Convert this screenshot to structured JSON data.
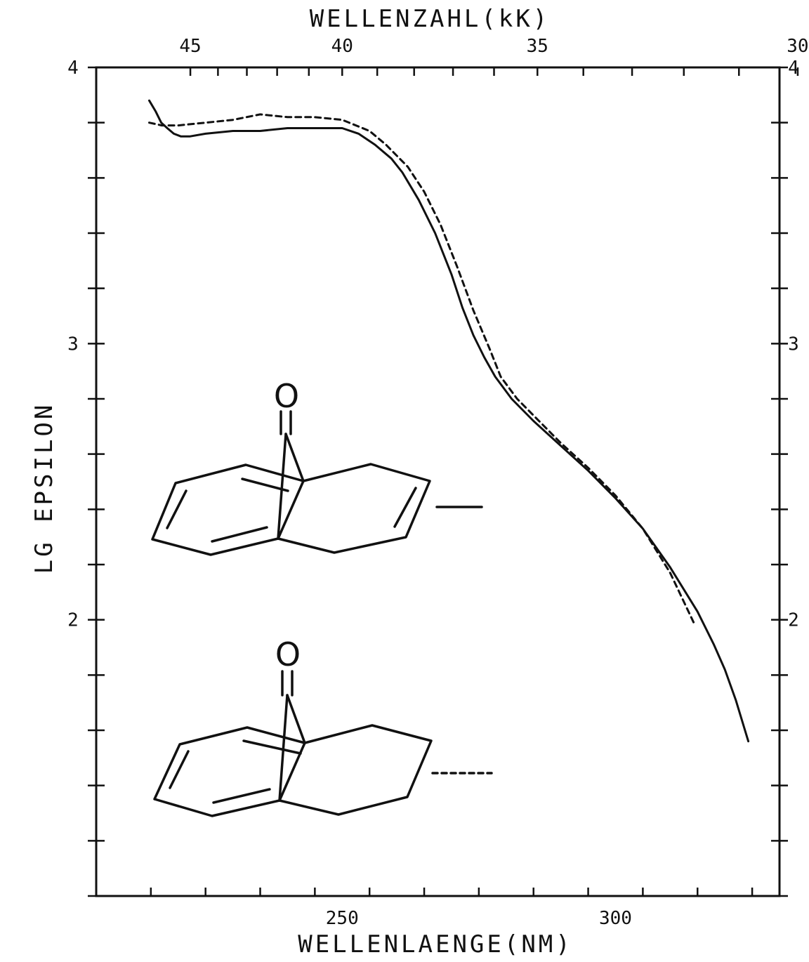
{
  "chart_data": {
    "type": "line",
    "xlabel": "WELLENLAENGE(NM)",
    "x2label": "WELLENZAHL(kK)",
    "ylabel": "LG EPSILON",
    "xlim": [
      205,
      330
    ],
    "ylim": [
      1.0,
      4.0
    ],
    "x_ticks": [
      250,
      300
    ],
    "x_tick_labels": [
      "250",
      "300"
    ],
    "x2_ticks": [
      45,
      40,
      35,
      30
    ],
    "x2_tick_labels": [
      "45",
      "40",
      "35",
      "30"
    ],
    "y_ticks": [
      2,
      3,
      4
    ],
    "y_tick_labels": [
      "2",
      "3",
      "4"
    ],
    "grid": false,
    "series": [
      {
        "style": "solid",
        "x": [
          214.7,
          215.9,
          216.9,
          218,
          219.2,
          220.5,
          222.1,
          225,
          230,
          235,
          240,
          245,
          250,
          253,
          256,
          259,
          261,
          264,
          267,
          270,
          272,
          274,
          276,
          278,
          281,
          285,
          290,
          295,
          300,
          305,
          310,
          315,
          318,
          320,
          322,
          324.3
        ],
        "y": [
          3.88,
          3.84,
          3.8,
          3.78,
          3.76,
          3.75,
          3.75,
          3.76,
          3.77,
          3.77,
          3.78,
          3.78,
          3.78,
          3.76,
          3.72,
          3.67,
          3.62,
          3.52,
          3.4,
          3.25,
          3.13,
          3.03,
          2.95,
          2.88,
          2.8,
          2.72,
          2.63,
          2.54,
          2.44,
          2.33,
          2.19,
          2.03,
          1.91,
          1.82,
          1.71,
          1.56
        ]
      },
      {
        "style": "dashed",
        "x": [
          214.7,
          217,
          220,
          225,
          230,
          235,
          240,
          245,
          250,
          255,
          258,
          262,
          265,
          268,
          271,
          274,
          277,
          279,
          282,
          286,
          290,
          295,
          300,
          305,
          310,
          314.3
        ],
        "y": [
          3.8,
          3.79,
          3.79,
          3.8,
          3.81,
          3.83,
          3.82,
          3.82,
          3.81,
          3.77,
          3.72,
          3.64,
          3.55,
          3.43,
          3.28,
          3.12,
          2.98,
          2.88,
          2.8,
          2.72,
          2.64,
          2.55,
          2.45,
          2.33,
          2.17,
          1.99
        ]
      }
    ]
  }
}
